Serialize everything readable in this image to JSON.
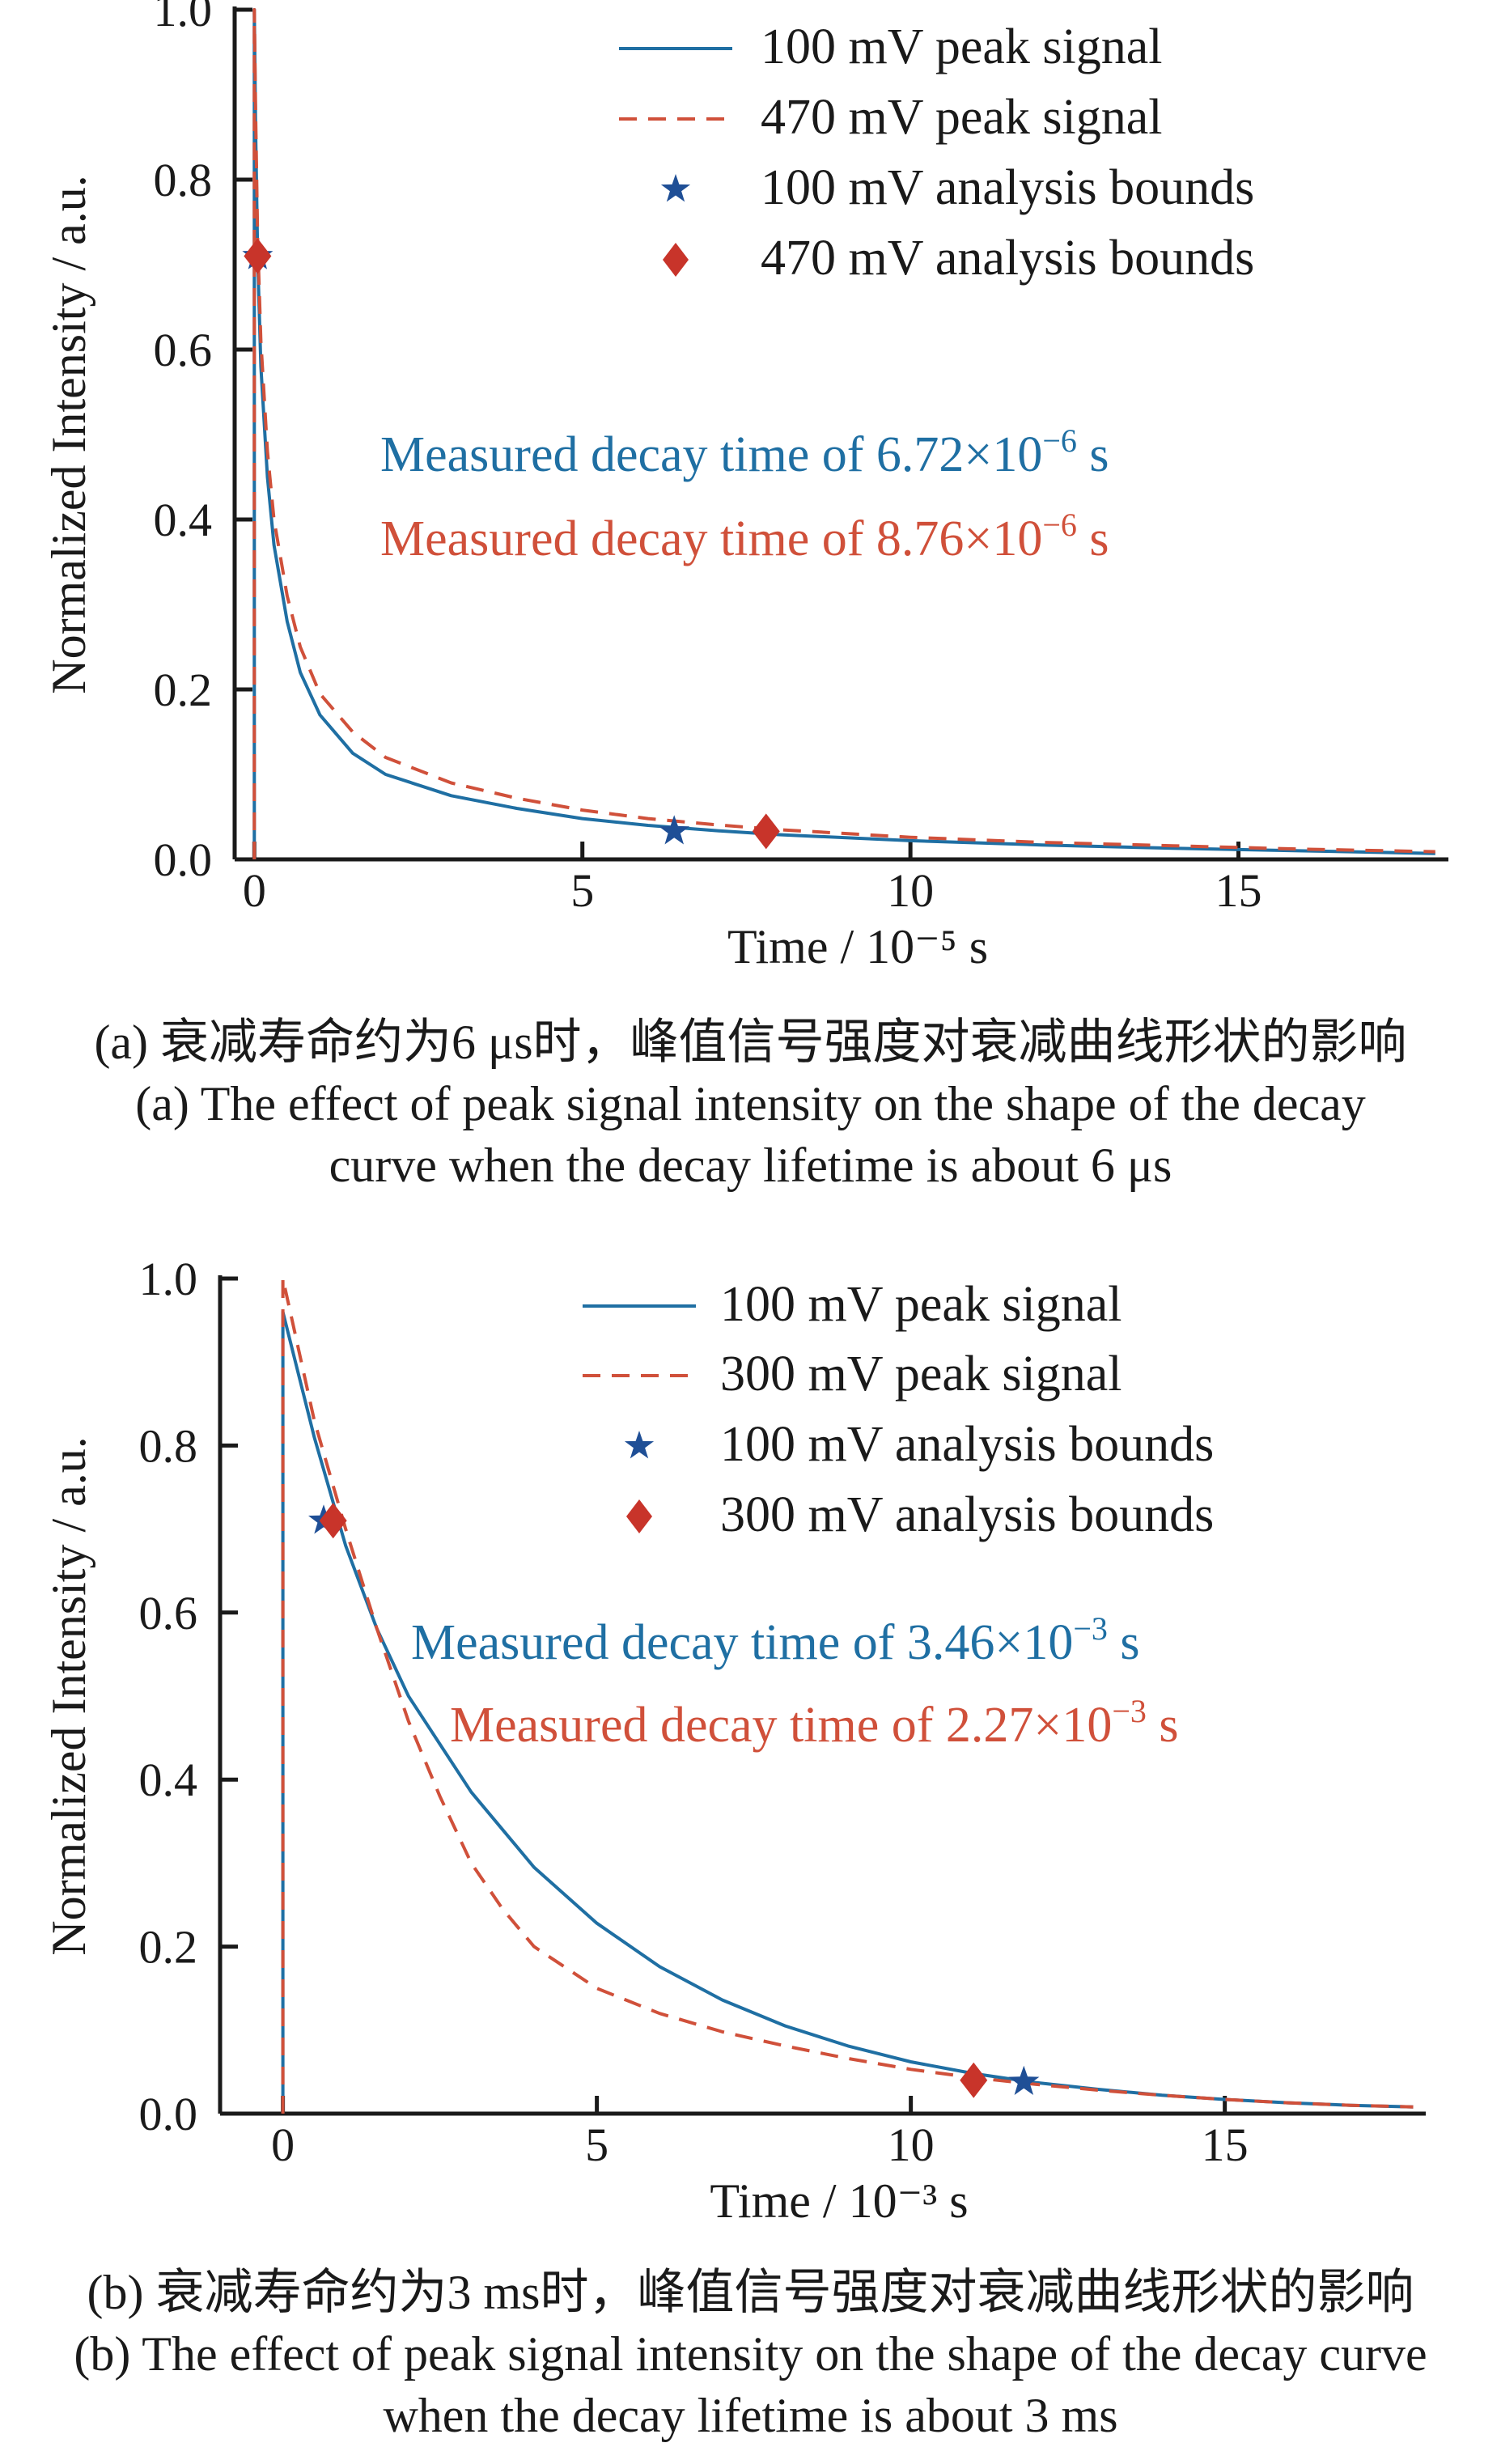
{
  "chart_data": [
    {
      "type": "line",
      "xlabel": "Time / 10⁻⁵ s",
      "ylabel": "Normalized Intensity / a.u.",
      "xlim": [
        -0.3,
        18.2
      ],
      "ylim": [
        0,
        1.0
      ],
      "xticks": [
        "0",
        "5",
        "10",
        "15"
      ],
      "yticks": [
        "0.0",
        "0.2",
        "0.4",
        "0.6",
        "0.8",
        "1.0"
      ],
      "grid": false,
      "legend_position": "top-right",
      "series": [
        {
          "name": "100 mV peak signal",
          "style": "solid",
          "color": "#1f6fa3",
          "x": [
            0,
            0.02,
            0.05,
            0.1,
            0.2,
            0.3,
            0.5,
            0.7,
            1.0,
            1.5,
            2.0,
            3.0,
            4.0,
            5.0,
            6.0,
            7.0,
            8.0,
            10.0,
            12.0,
            14.0,
            16.0,
            18.0
          ],
          "y": [
            1.0,
            0.86,
            0.71,
            0.58,
            0.45,
            0.37,
            0.28,
            0.22,
            0.17,
            0.125,
            0.1,
            0.075,
            0.06,
            0.048,
            0.04,
            0.034,
            0.029,
            0.022,
            0.017,
            0.013,
            0.01,
            0.007
          ]
        },
        {
          "name": "470 mV peak signal",
          "style": "dashed",
          "color": "#d0503a",
          "x": [
            0,
            0.02,
            0.05,
            0.1,
            0.2,
            0.3,
            0.5,
            0.7,
            1.0,
            1.5,
            2.0,
            3.0,
            4.0,
            5.0,
            6.0,
            7.0,
            8.0,
            10.0,
            12.0,
            14.0,
            16.0,
            18.0
          ],
          "y": [
            1.0,
            0.88,
            0.73,
            0.61,
            0.48,
            0.4,
            0.31,
            0.25,
            0.195,
            0.15,
            0.12,
            0.09,
            0.072,
            0.058,
            0.048,
            0.041,
            0.035,
            0.026,
            0.02,
            0.016,
            0.012,
            0.009
          ]
        },
        {
          "name": "100 mV analysis bounds",
          "marker": "star",
          "color": "#1f4f96",
          "x": [
            0.05,
            6.4
          ],
          "y": [
            0.71,
            0.033
          ]
        },
        {
          "name": "470 mV analysis bounds",
          "marker": "diamond",
          "color": "#c8342a",
          "x": [
            0.05,
            7.8
          ],
          "y": [
            0.71,
            0.033
          ]
        }
      ],
      "annotations": [
        {
          "text_prefix": "Measured decay time of  6.72×10",
          "exponent": "−6",
          "unit": " s",
          "color": "#1f6fa3"
        },
        {
          "text_prefix": "Measured decay time of  8.76×10",
          "exponent": "−6",
          "unit": " s",
          "color": "#d0503a"
        }
      ]
    },
    {
      "type": "line",
      "xlabel": "Time / 10⁻³ s",
      "ylabel": "Normalized Intensity / a.u.",
      "xlim": [
        -1.0,
        18.2
      ],
      "ylim": [
        0,
        1.0
      ],
      "xticks": [
        "0",
        "5",
        "10",
        "15"
      ],
      "yticks": [
        "0.0",
        "0.2",
        "0.4",
        "0.6",
        "0.8",
        "1.0"
      ],
      "grid": false,
      "legend_position": "top-right",
      "series": [
        {
          "name": "100 mV peak signal",
          "style": "solid",
          "color": "#1f6fa3",
          "x": [
            0,
            0.5,
            1.0,
            1.5,
            2.0,
            3.0,
            4.0,
            5.0,
            6.0,
            7.0,
            8.0,
            9.0,
            10.0,
            11.0,
            12.0,
            13.0,
            14.0,
            15.0,
            16.0,
            17.0,
            18.0
          ],
          "y": [
            0.96,
            0.81,
            0.68,
            0.58,
            0.5,
            0.385,
            0.295,
            0.228,
            0.176,
            0.136,
            0.105,
            0.081,
            0.062,
            0.048,
            0.037,
            0.029,
            0.022,
            0.017,
            0.013,
            0.01,
            0.008
          ]
        },
        {
          "name": "300 mV peak signal",
          "style": "dashed",
          "color": "#d0503a",
          "x": [
            0,
            0.5,
            1.0,
            1.5,
            2.0,
            2.5,
            3.0,
            3.5,
            4.0,
            5.0,
            6.0,
            7.0,
            8.0,
            9.0,
            10.0,
            11.0,
            12.0,
            13.0,
            14.0,
            15.0,
            16.0,
            17.0,
            18.0
          ],
          "y": [
            1.0,
            0.83,
            0.7,
            0.58,
            0.47,
            0.38,
            0.3,
            0.245,
            0.2,
            0.15,
            0.12,
            0.098,
            0.081,
            0.066,
            0.053,
            0.043,
            0.035,
            0.028,
            0.022,
            0.017,
            0.013,
            0.01,
            0.008
          ]
        },
        {
          "name": "100 mV analysis bounds",
          "marker": "star",
          "color": "#1f4f96",
          "x": [
            0.65,
            11.8
          ],
          "y": [
            0.71,
            0.038
          ]
        },
        {
          "name": "300 mV analysis bounds",
          "marker": "diamond",
          "color": "#c8342a",
          "x": [
            0.8,
            11.0
          ],
          "y": [
            0.71,
            0.04
          ]
        }
      ],
      "annotations": [
        {
          "text_prefix": "Measured decay time of  3.46×10",
          "exponent": "−3",
          "unit": " s",
          "color": "#1f6fa3"
        },
        {
          "text_prefix": "Measured decay time of  2.27×10",
          "exponent": "−3",
          "unit": " s",
          "color": "#d0503a"
        }
      ]
    }
  ],
  "captions": {
    "a_cn": "(a) 衰减寿命约为6 μs时，峰值信号强度对衰减曲线形状的影响",
    "a_en_1": "(a) The effect of peak signal intensity on the shape of the decay",
    "a_en_2": "curve when the decay lifetime is about 6 μs",
    "b_cn": "(b) 衰减寿命约为3 ms时，峰值信号强度对衰减曲线形状的影响",
    "b_en_1": "(b) The effect of peak signal intensity on the shape of the decay curve",
    "b_en_2": "when the decay lifetime is about 3 ms"
  }
}
